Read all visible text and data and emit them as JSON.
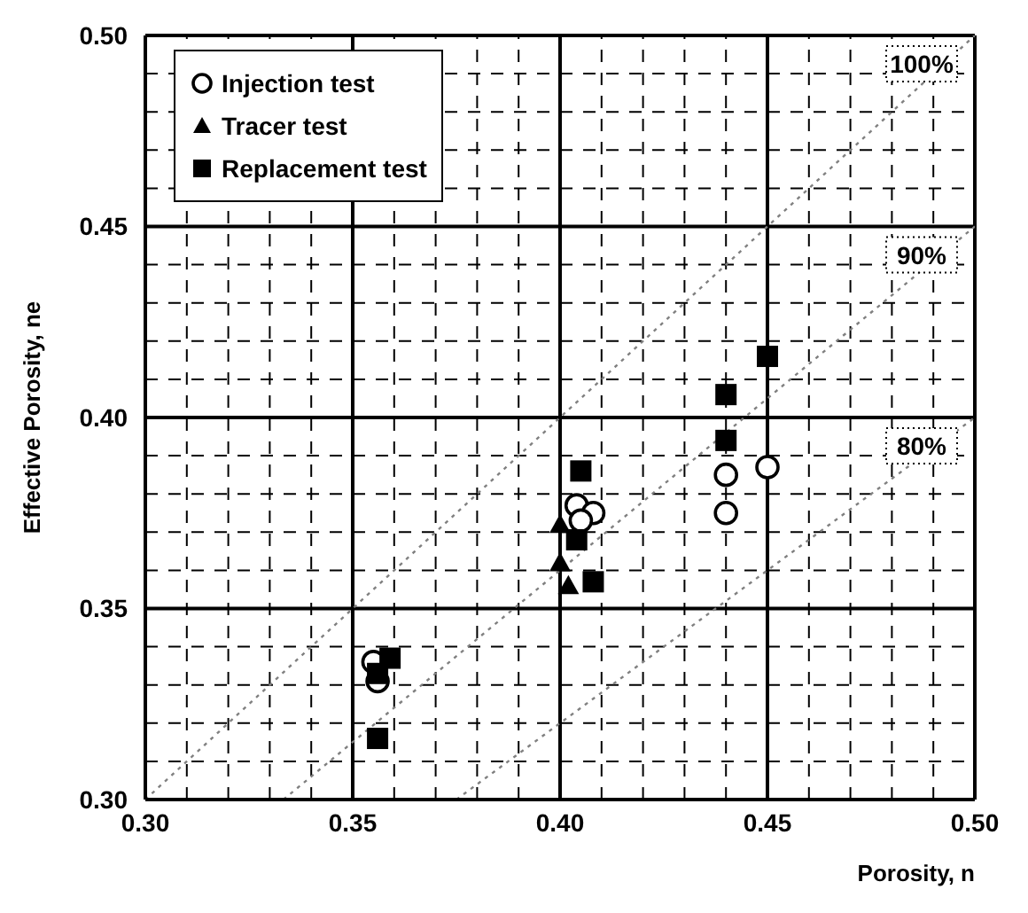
{
  "chart_data": {
    "type": "scatter",
    "xlabel": "Porosity, n",
    "ylabel": "Effective Porosity, ne",
    "xlim": [
      0.3,
      0.5
    ],
    "ylim": [
      0.3,
      0.5
    ],
    "xticks": [
      {
        "value": 0.3,
        "label": "0.30"
      },
      {
        "value": 0.31,
        "label": null
      },
      {
        "value": 0.32,
        "label": null
      },
      {
        "value": 0.33,
        "label": null
      },
      {
        "value": 0.34,
        "label": null
      },
      {
        "value": 0.35,
        "label": "0.35"
      },
      {
        "value": 0.36,
        "label": null
      },
      {
        "value": 0.37,
        "label": null
      },
      {
        "value": 0.38,
        "label": null
      },
      {
        "value": 0.39,
        "label": null
      },
      {
        "value": 0.4,
        "label": "0.40"
      },
      {
        "value": 0.41,
        "label": null
      },
      {
        "value": 0.42,
        "label": null
      },
      {
        "value": 0.43,
        "label": null
      },
      {
        "value": 0.44,
        "label": null
      },
      {
        "value": 0.45,
        "label": "0.45"
      },
      {
        "value": 0.46,
        "label": null
      },
      {
        "value": 0.47,
        "label": null
      },
      {
        "value": 0.48,
        "label": null
      },
      {
        "value": 0.49,
        "label": null
      },
      {
        "value": 0.5,
        "label": "0.50"
      }
    ],
    "yticks": [
      {
        "value": 0.3,
        "label": "0.30"
      },
      {
        "value": 0.31,
        "label": null
      },
      {
        "value": 0.32,
        "label": null
      },
      {
        "value": 0.33,
        "label": null
      },
      {
        "value": 0.34,
        "label": null
      },
      {
        "value": 0.35,
        "label": "0.35"
      },
      {
        "value": 0.36,
        "label": null
      },
      {
        "value": 0.37,
        "label": null
      },
      {
        "value": 0.38,
        "label": null
      },
      {
        "value": 0.39,
        "label": null
      },
      {
        "value": 0.4,
        "label": "0.40"
      },
      {
        "value": 0.41,
        "label": null
      },
      {
        "value": 0.42,
        "label": null
      },
      {
        "value": 0.43,
        "label": null
      },
      {
        "value": 0.44,
        "label": null
      },
      {
        "value": 0.45,
        "label": "0.45"
      },
      {
        "value": 0.46,
        "label": null
      },
      {
        "value": 0.47,
        "label": null
      },
      {
        "value": 0.48,
        "label": null
      },
      {
        "value": 0.49,
        "label": null
      },
      {
        "value": 0.5,
        "label": "0.50"
      }
    ],
    "grid": true,
    "legend": "top left",
    "series": [
      {
        "name": "Injection test",
        "marker": "circle",
        "color": "#000000",
        "x": [
          0.355,
          0.356,
          0.404,
          0.408,
          0.405,
          0.44,
          0.45,
          0.44
        ],
        "values": [
          0.336,
          0.331,
          0.377,
          0.375,
          0.373,
          0.385,
          0.387,
          0.375
        ]
      },
      {
        "name": "Tracer test",
        "marker": "triangle",
        "color": "#000000",
        "x": [
          0.4,
          0.4,
          0.402
        ],
        "values": [
          0.372,
          0.362,
          0.356
        ]
      },
      {
        "name": "Replacement test",
        "marker": "square",
        "color": "#000000",
        "x": [
          0.359,
          0.356,
          0.356,
          0.405,
          0.404,
          0.408,
          0.44,
          0.44,
          0.45
        ],
        "values": [
          0.337,
          0.333,
          0.316,
          0.386,
          0.368,
          0.357,
          0.394,
          0.406,
          0.416
        ]
      },
      {
        "name": "100%",
        "type": "line",
        "marker": "none",
        "line_style": "dotted",
        "color": "#808080",
        "x": [
          0.3,
          0.5
        ],
        "values": [
          0.3,
          0.5
        ]
      },
      {
        "name": "90%",
        "type": "line",
        "marker": "none",
        "line_style": "dotted",
        "color": "#808080",
        "x": [
          0.3333,
          0.5
        ],
        "values": [
          0.3,
          0.45
        ]
      },
      {
        "name": "80%",
        "type": "line",
        "marker": "none",
        "line_style": "dotted",
        "color": "#808080",
        "x": [
          0.375,
          0.5
        ],
        "values": [
          0.3,
          0.4
        ]
      }
    ]
  }
}
